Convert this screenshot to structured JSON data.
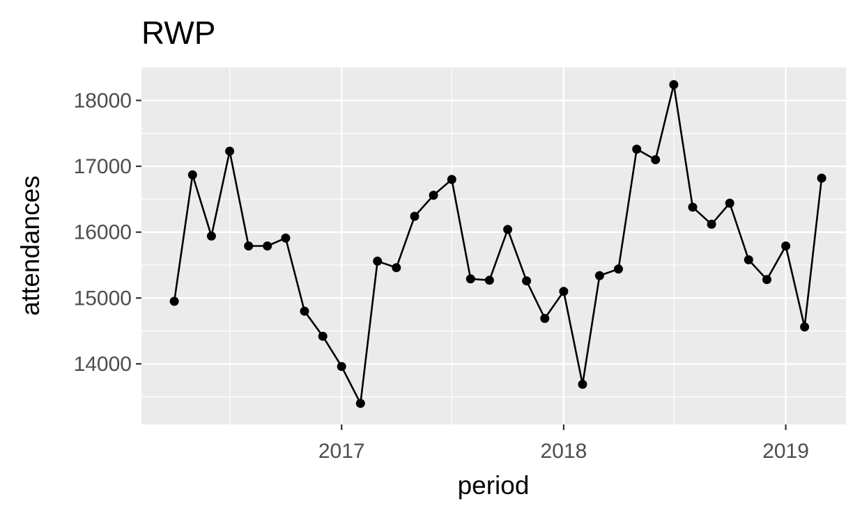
{
  "chart_data": {
    "type": "line",
    "title": "RWP",
    "xlabel": "period",
    "ylabel": "attendances",
    "grid": true,
    "legend": "none",
    "xlim": [
      "2016-02-07",
      "2019-04-10"
    ],
    "ylim": [
      13080,
      18500
    ],
    "x_ticks": [
      {
        "value": "2017-01-01",
        "label": "2017"
      },
      {
        "value": "2018-01-01",
        "label": "2018"
      },
      {
        "value": "2019-01-01",
        "label": "2019"
      }
    ],
    "x_minor_ticks": [
      "2016-07-01",
      "2017-07-01",
      "2018-07-01"
    ],
    "y_ticks": [
      {
        "value": 14000,
        "label": "14000"
      },
      {
        "value": 15000,
        "label": "15000"
      },
      {
        "value": 16000,
        "label": "16000"
      },
      {
        "value": 17000,
        "label": "17000"
      },
      {
        "value": 18000,
        "label": "18000"
      }
    ],
    "y_minor_ticks": [
      13500,
      14500,
      15500,
      16500,
      17500
    ],
    "series": [
      {
        "color": "#000000",
        "x": [
          "2016-04-01",
          "2016-05-01",
          "2016-06-01",
          "2016-07-01",
          "2016-08-01",
          "2016-09-01",
          "2016-10-01",
          "2016-11-01",
          "2016-12-01",
          "2017-01-01",
          "2017-02-01",
          "2017-03-01",
          "2017-04-01",
          "2017-05-01",
          "2017-06-01",
          "2017-07-01",
          "2017-08-01",
          "2017-09-01",
          "2017-10-01",
          "2017-11-01",
          "2017-12-01",
          "2018-01-01",
          "2018-02-01",
          "2018-03-01",
          "2018-04-01",
          "2018-05-01",
          "2018-06-01",
          "2018-07-01",
          "2018-08-01",
          "2018-09-01",
          "2018-10-01",
          "2018-11-01",
          "2018-12-01",
          "2019-01-01",
          "2019-02-01",
          "2019-03-01"
        ],
        "values": [
          14950,
          16870,
          15940,
          17230,
          15790,
          15790,
          15910,
          14800,
          14420,
          13960,
          13400,
          15560,
          15460,
          16240,
          16560,
          16800,
          15290,
          15270,
          16040,
          15260,
          14690,
          15100,
          13690,
          15340,
          15440,
          17260,
          17100,
          18240,
          16380,
          16120,
          16440,
          15580,
          15280,
          15790,
          14560,
          16820
        ]
      }
    ]
  }
}
